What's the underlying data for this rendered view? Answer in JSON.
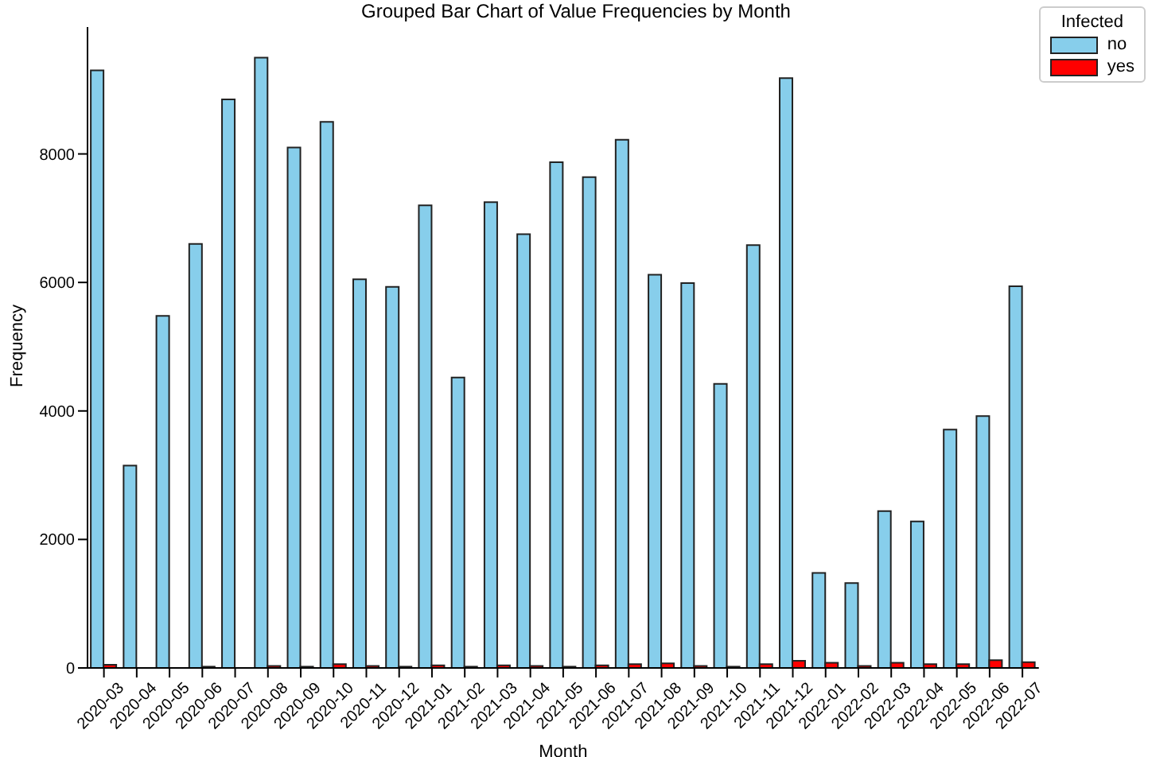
{
  "chart_data": {
    "type": "bar",
    "title": "Grouped Bar Chart of Value Frequencies by Month",
    "xlabel": "Month",
    "ylabel": "Frequency",
    "legend_title": "Infected",
    "categories": [
      "2020-03",
      "2020-04",
      "2020-05",
      "2020-06",
      "2020-07",
      "2020-08",
      "2020-09",
      "2020-10",
      "2020-11",
      "2020-12",
      "2021-01",
      "2021-02",
      "2021-03",
      "2021-04",
      "2021-05",
      "2021-06",
      "2021-07",
      "2021-08",
      "2021-09",
      "2021-10",
      "2021-11",
      "2021-12",
      "2022-01",
      "2022-02",
      "2022-03",
      "2022-04",
      "2022-05",
      "2022-06",
      "2022-07"
    ],
    "series": [
      {
        "name": "no",
        "color": "#87ceeb",
        "values": [
          9300,
          3150,
          5480,
          6600,
          8850,
          9500,
          8100,
          8500,
          6050,
          5930,
          7200,
          4520,
          7250,
          6750,
          7870,
          7640,
          8220,
          6120,
          5990,
          4420,
          6580,
          9180,
          1480,
          1320,
          2440,
          2280,
          3710,
          3920,
          5940
        ]
      },
      {
        "name": "yes",
        "color": "#ff0000",
        "values": [
          50,
          null,
          null,
          20,
          null,
          30,
          20,
          60,
          30,
          20,
          40,
          20,
          40,
          30,
          20,
          40,
          60,
          70,
          30,
          20,
          60,
          110,
          80,
          30,
          80,
          60,
          60,
          120,
          90
        ]
      }
    ],
    "ylim": [
      0,
      9975
    ],
    "yticks": [
      0,
      2000,
      4000,
      6000,
      8000
    ],
    "grid": false,
    "legend": "top right"
  }
}
